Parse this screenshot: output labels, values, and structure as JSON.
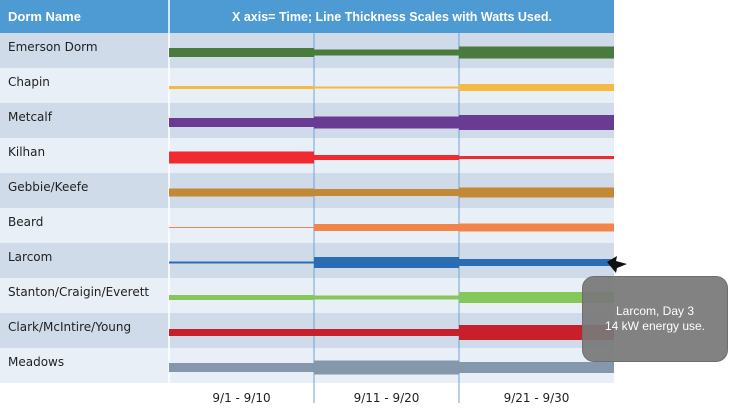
{
  "chart_data": {
    "type": "line",
    "header": {
      "label_column": "Dorm Name",
      "title": "X axis= Time; Line Thickness Scales with Watts Used."
    },
    "categories": [
      "9/1 - 9/10",
      "9/11 - 9/20",
      "9/21 - 9/30"
    ],
    "encoding": "line thickness scales with watts used",
    "rows": [
      {
        "name": "Emerson Dorm",
        "color": "#4a7a3c",
        "thickness": [
          9,
          6,
          12
        ]
      },
      {
        "name": "Chapin",
        "color": "#f6b941",
        "thickness": [
          3,
          2,
          7
        ]
      },
      {
        "name": "Metcalf",
        "color": "#6a3b93",
        "thickness": [
          9,
          12,
          15
        ]
      },
      {
        "name": "Kilhan",
        "color": "#f02a2e",
        "thickness": [
          12,
          5,
          3
        ]
      },
      {
        "name": "Gebbie/Keefe",
        "color": "#c28a34",
        "thickness": [
          8,
          7,
          10
        ]
      },
      {
        "name": "Beard",
        "color": "#f2844a",
        "thickness": [
          1,
          7,
          8
        ]
      },
      {
        "name": "Larcom",
        "color": "#2a6db3",
        "thickness": [
          2,
          11,
          7
        ]
      },
      {
        "name": "Stanton/Craigin/Everett",
        "color": "#86c759",
        "thickness": [
          5,
          4,
          11
        ]
      },
      {
        "name": "Clark/McIntire/Young",
        "color": "#c8202a",
        "thickness": [
          7,
          7,
          15
        ]
      },
      {
        "name": "Meadows",
        "color": "#8597ab",
        "thickness": [
          9,
          14,
          11
        ]
      }
    ],
    "tooltip": {
      "line1": "Larcom, Day 3",
      "line2": "14 kW energy use."
    },
    "colors": {
      "header": "#4e9bd3",
      "band_dark": "#cfdbe9",
      "band_light": "#e9eff6",
      "gridline": "#6fa3d6"
    }
  }
}
